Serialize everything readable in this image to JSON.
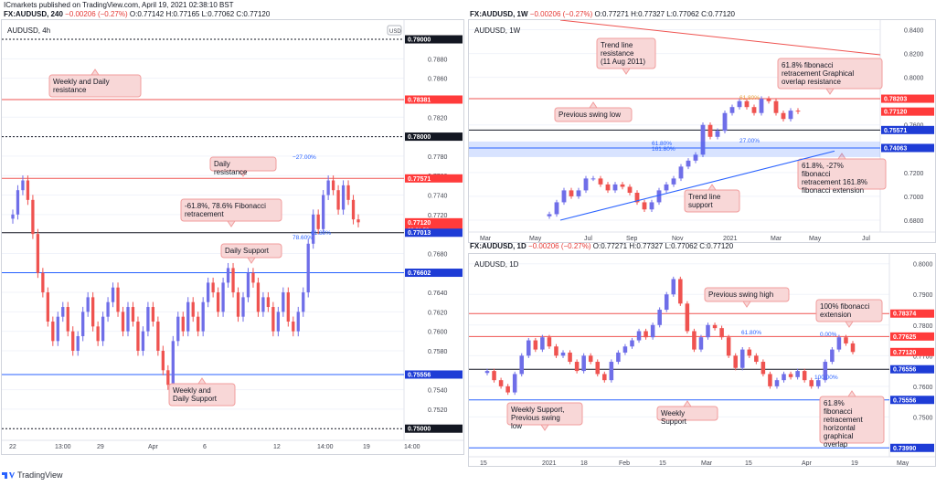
{
  "header": {
    "line1": "ICmarkets published on TradingView.com, April 19, 2021 02:38:10 BST",
    "left_symbol": "FX:AUDUSD, 240",
    "left_change": "−0.00206 (−0.27%)",
    "left_ohlc": "O:0.77142  H:0.77165  L:0.77062  C:0.77120",
    "right_symbol": "FX:AUDUSD, 1W",
    "right_change": "−0.00206 (−0.27%)",
    "right_ohlc": "O:0.77271  H:0.77327  L:0.77062  C:0.77120",
    "bottom_symbol": "FX:AUDUSD, 1D",
    "bottom_change": "−0.00206 (−0.27%)",
    "bottom_ohlc": "O:0.77271  H:0.77327  L:0.77062  C:0.77120"
  },
  "footer": {
    "brand": "TradingView"
  },
  "colors": {
    "up": "#6f6ee8",
    "down": "#ef5350",
    "resistance": "#ef5350",
    "support": "#2962ff",
    "grid": "#f0f3fa",
    "badge_red": "#ff3b3b",
    "badge_blue": "#1e3cd6",
    "badge_black": "#131722",
    "callout_bg": "#f8d7d7",
    "callout_border": "#f19c9c"
  },
  "chart_data": [
    {
      "id": "h4",
      "type": "candlestick",
      "title": "AUDUSD, 4h",
      "currency": "USD",
      "ylim": [
        0.7488,
        0.7916
      ],
      "yticks": [
        0.752,
        0.754,
        0.758,
        0.76,
        0.762,
        0.764,
        0.766,
        0.768,
        0.772,
        0.774,
        0.776,
        0.778,
        0.78,
        0.782,
        0.786,
        0.788
      ],
      "x_labels": [
        "22",
        "13:00",
        "29",
        "Apr",
        "6",
        "12",
        "14:00",
        "19",
        "14:00"
      ],
      "levels": [
        {
          "value": 0.79,
          "label": "0.79000",
          "style": "black-dotted",
          "badge": "black"
        },
        {
          "value": 0.78381,
          "label": "0.78381",
          "style": "red",
          "badge": "red"
        },
        {
          "value": 0.78,
          "label": "0.78000",
          "style": "black-dotted",
          "badge": "black"
        },
        {
          "value": 0.77571,
          "label": "0.77571",
          "style": "red",
          "badge": "red"
        },
        {
          "value": 0.7712,
          "label": "0.77120",
          "style": "none",
          "badge": "red",
          "sub": "00:21:52"
        },
        {
          "value": 0.77013,
          "label": "0.77013",
          "style": "black",
          "badge": "blue"
        },
        {
          "value": 0.76602,
          "label": "0.76602",
          "style": "blue",
          "badge": "blue"
        },
        {
          "value": 0.75556,
          "label": "0.75556",
          "style": "blue",
          "badge": "blue"
        },
        {
          "value": 0.75,
          "label": "0.75000",
          "style": "black-dotted",
          "badge": "black"
        }
      ],
      "fib_labels": [
        "−27.00%",
        "78.60%",
        "61.80%"
      ],
      "callouts": [
        "Weekly and Daily resistance",
        "Daily resistance",
        "-61.8%, 78.6% Fibonacci retracement",
        "Daily Support",
        "Weekly and Daily Support"
      ],
      "closes": [
        0.772,
        0.7745,
        0.7755,
        0.7735,
        0.77,
        0.766,
        0.764,
        0.761,
        0.759,
        0.7615,
        0.7625,
        0.76,
        0.758,
        0.7595,
        0.762,
        0.7635,
        0.7605,
        0.759,
        0.7615,
        0.763,
        0.7645,
        0.762,
        0.76,
        0.7625,
        0.761,
        0.758,
        0.76,
        0.7625,
        0.761,
        0.758,
        0.756,
        0.7545,
        0.759,
        0.7615,
        0.76,
        0.763,
        0.7615,
        0.76,
        0.763,
        0.765,
        0.764,
        0.762,
        0.765,
        0.7665,
        0.764,
        0.7615,
        0.7635,
        0.766,
        0.765,
        0.762,
        0.7635,
        0.7625,
        0.76,
        0.762,
        0.764,
        0.761,
        0.76,
        0.762,
        0.764,
        0.769,
        0.772,
        0.7705,
        0.774,
        0.7755,
        0.7745,
        0.7725,
        0.775,
        0.7735,
        0.7715,
        0.7712
      ]
    },
    {
      "id": "w1",
      "type": "candlestick",
      "title": "AUDUSD, 1W",
      "ylim": [
        0.67,
        0.845
      ],
      "yticks": [
        0.68,
        0.7,
        0.72,
        0.76,
        0.8,
        0.82,
        0.84
      ],
      "x_labels": [
        "Mar",
        "May",
        "Jul",
        "Sep",
        "Nov",
        "2021",
        "Mar",
        "May",
        "Jul"
      ],
      "levels": [
        {
          "value": 0.78203,
          "label": "0.78203",
          "style": "red",
          "badge": "red"
        },
        {
          "value": 0.7712,
          "label": "0.77120",
          "style": "none",
          "badge": "red"
        },
        {
          "value": 0.75571,
          "label": "0.75571",
          "style": "black",
          "badge": "blue"
        },
        {
          "value": 0.74063,
          "label": "0.74063",
          "style": "blue",
          "badge": "blue"
        }
      ],
      "fib_labels": [
        "61.80%",
        "27.00%",
        "61.80%",
        "161.80%"
      ],
      "callouts": [
        "Trend line resistance (11 Aug 2011)",
        "61.8% fibonacci retracement Graphical overlap resistance",
        "Previous swing low",
        "61.8%, -27% fibonacci retracement 161.8% fibonacci extension",
        "Trend line support"
      ],
      "closes": [
        0.685,
        0.695,
        0.705,
        0.7,
        0.705,
        0.715,
        0.715,
        0.71,
        0.705,
        0.71,
        0.708,
        0.703,
        0.695,
        0.689,
        0.695,
        0.705,
        0.71,
        0.715,
        0.725,
        0.73,
        0.735,
        0.76,
        0.75,
        0.755,
        0.77,
        0.775,
        0.78,
        0.775,
        0.77,
        0.782,
        0.78,
        0.77,
        0.765,
        0.772,
        0.7712
      ]
    },
    {
      "id": "d1",
      "type": "candlestick",
      "title": "AUDUSD, 1D",
      "ylim": [
        0.737,
        0.802
      ],
      "yticks": [
        0.74,
        0.75,
        0.76,
        0.77,
        0.78,
        0.79,
        0.8
      ],
      "x_labels": [
        "15",
        "2021",
        "18",
        "Feb",
        "15",
        "Mar",
        "15",
        "Apr",
        "19",
        "May"
      ],
      "levels": [
        {
          "value": 0.78374,
          "label": "0.78374",
          "style": "red",
          "badge": "red"
        },
        {
          "value": 0.77625,
          "label": "0.77625",
          "style": "red",
          "badge": "red"
        },
        {
          "value": 0.7712,
          "label": "0.77120",
          "style": "none",
          "badge": "red"
        },
        {
          "value": 0.76556,
          "label": "0.76556",
          "style": "black",
          "badge": "blue"
        },
        {
          "value": 0.75556,
          "label": "0.75556",
          "style": "blue",
          "badge": "blue"
        },
        {
          "value": 0.7399,
          "label": "0.73990",
          "style": "blue",
          "badge": "blue"
        }
      ],
      "fib_labels": [
        "0.00%",
        "61.80%",
        "100.00%"
      ],
      "callouts": [
        "Previous swing high",
        "100% fibonacci extension",
        "Weekly Support, Previous swing low",
        "Weekly Support",
        "61.8% fibonacci retracement horizontal graphical overlap"
      ],
      "closes": [
        0.765,
        0.762,
        0.76,
        0.758,
        0.764,
        0.77,
        0.775,
        0.772,
        0.776,
        0.773,
        0.77,
        0.771,
        0.768,
        0.765,
        0.77,
        0.768,
        0.764,
        0.762,
        0.768,
        0.771,
        0.773,
        0.775,
        0.778,
        0.776,
        0.78,
        0.785,
        0.79,
        0.795,
        0.787,
        0.778,
        0.772,
        0.776,
        0.78,
        0.779,
        0.776,
        0.77,
        0.766,
        0.772,
        0.77,
        0.768,
        0.764,
        0.76,
        0.762,
        0.764,
        0.763,
        0.765,
        0.762,
        0.76,
        0.762,
        0.768,
        0.772,
        0.776,
        0.774,
        0.7712
      ]
    }
  ]
}
